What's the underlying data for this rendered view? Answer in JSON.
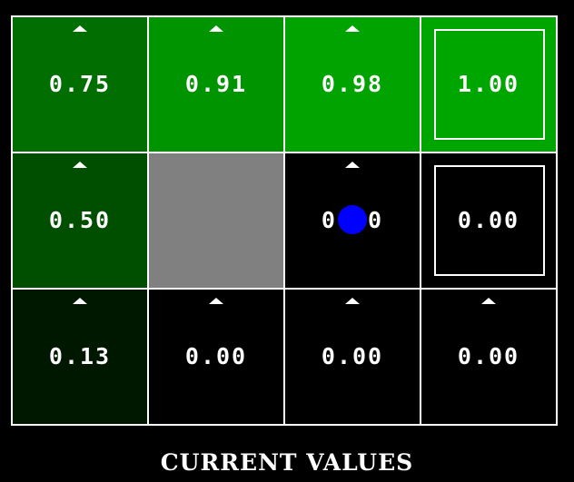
{
  "caption": "CURRENT VALUES",
  "grid": {
    "rows": 3,
    "cols": 4,
    "cells": [
      {
        "row": 0,
        "col": 0,
        "value": "0.75",
        "policy": "up",
        "color": "#006e00",
        "terminal": false,
        "wall": false
      },
      {
        "row": 0,
        "col": 1,
        "value": "0.91",
        "policy": "up",
        "color": "#009400",
        "terminal": false,
        "wall": false
      },
      {
        "row": 0,
        "col": 2,
        "value": "0.98",
        "policy": "up",
        "color": "#00a300",
        "terminal": false,
        "wall": false
      },
      {
        "row": 0,
        "col": 3,
        "value": "1.00",
        "policy": null,
        "color": "#00a600",
        "terminal": true,
        "wall": false
      },
      {
        "row": 1,
        "col": 0,
        "value": "0.50",
        "policy": "up",
        "color": "#004f00",
        "terminal": false,
        "wall": false
      },
      {
        "row": 1,
        "col": 1,
        "value": null,
        "policy": null,
        "color": "#808080",
        "terminal": false,
        "wall": true
      },
      {
        "row": 1,
        "col": 2,
        "value": "0.00",
        "policy": "up",
        "color": "#000000",
        "terminal": false,
        "wall": false,
        "agent": true
      },
      {
        "row": 1,
        "col": 3,
        "value": "0.00",
        "policy": null,
        "color": "#000000",
        "terminal": true,
        "wall": false
      },
      {
        "row": 2,
        "col": 0,
        "value": "0.13",
        "policy": "up",
        "color": "#001700",
        "terminal": false,
        "wall": false
      },
      {
        "row": 2,
        "col": 1,
        "value": "0.00",
        "policy": "up",
        "color": "#000000",
        "terminal": false,
        "wall": false
      },
      {
        "row": 2,
        "col": 2,
        "value": "0.00",
        "policy": "up",
        "color": "#000000",
        "terminal": false,
        "wall": false
      },
      {
        "row": 2,
        "col": 3,
        "value": "0.00",
        "policy": "up",
        "color": "#000000",
        "terminal": false,
        "wall": false
      }
    ]
  },
  "colors": {
    "background": "#000000",
    "grid_lines": "#ffffff",
    "agent": "#0000ff",
    "wall": "#808080"
  }
}
